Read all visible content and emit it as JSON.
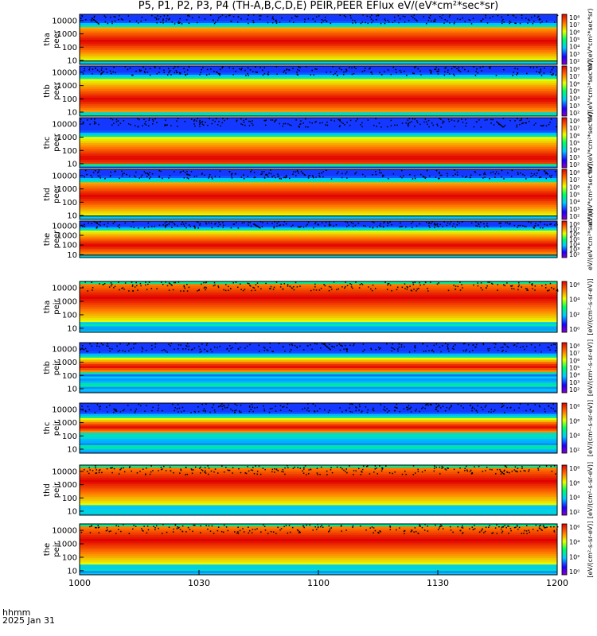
{
  "title": "P5, P1, P2, P3, P4 (TH-A,B,C,D,E) PEIR,PEER EFlux eV/(eV*cm²*sec*sr)",
  "x_axis": {
    "label_line1": "hhmm",
    "label_line2": "2025 Jan 31",
    "ticks": [
      "1000",
      "1030",
      "1100",
      "1130",
      "1200"
    ]
  },
  "colorbar_label_peer": "eV/(eV*cm²*sec*sr)",
  "colorbar_label_peir": "[eV/(cm²-s-sr-eV)]",
  "colors": {
    "background": "#ffffff",
    "axis": "#000000"
  },
  "chart_data": {
    "type": "heatmap",
    "x_range": [
      "10:00",
      "12:00"
    ],
    "x_units": "hhmm",
    "y_scale": "log",
    "y_units": "eV",
    "y_range": [
      5,
      30000
    ],
    "y_ticks": [
      "10000",
      "1000",
      "100",
      "10"
    ],
    "panels": [
      {
        "probe": "tha",
        "species": "peer",
        "ylabel": [
          "tha",
          "peer"
        ],
        "colorbar_ticks": [
          "10⁸",
          "10⁷",
          "10⁶",
          "10⁵",
          "10⁴",
          "10³",
          "10²"
        ],
        "peak_energy_eV": 300,
        "spectrum_low_eV": 10,
        "spectrum_high_eV": 3000,
        "has_potential_line": true
      },
      {
        "probe": "thb",
        "species": "peer",
        "ylabel": [
          "thb",
          "peer"
        ],
        "colorbar_ticks": [
          "10⁸",
          "10⁷",
          "10⁶",
          "10⁵",
          "10⁴",
          "10³",
          "10²"
        ],
        "peak_energy_eV": 100,
        "spectrum_low_eV": 10,
        "spectrum_high_eV": 3000,
        "has_potential_line": false
      },
      {
        "probe": "thc",
        "species": "peer",
        "ylabel": [
          "thc",
          "peer"
        ],
        "colorbar_ticks": [
          "10⁸",
          "10⁷",
          "10⁶",
          "10⁵",
          "10⁴",
          "10³",
          "10²"
        ],
        "peak_energy_eV": 30,
        "spectrum_low_eV": 10,
        "spectrum_high_eV": 1000,
        "has_potential_line": false
      },
      {
        "probe": "thd",
        "species": "peer",
        "ylabel": [
          "thd",
          "peer"
        ],
        "colorbar_ticks": [
          "10⁸",
          "10⁷",
          "10⁶",
          "10⁵",
          "10⁴",
          "10³",
          "10²"
        ],
        "peak_energy_eV": 300,
        "spectrum_low_eV": 10,
        "spectrum_high_eV": 3000,
        "has_potential_line": true
      },
      {
        "probe": "the",
        "species": "peer",
        "ylabel": [
          "the",
          "peer"
        ],
        "colorbar_ticks": [
          "10⁸",
          "10⁷",
          "10⁶",
          "10⁵",
          "10⁴",
          "10³",
          "10²"
        ],
        "peak_energy_eV": 100,
        "spectrum_low_eV": 10,
        "spectrum_high_eV": 3000,
        "has_potential_line": true
      },
      {
        "probe": "tha",
        "species": "peir",
        "ylabel": [
          "tha",
          "peir"
        ],
        "colorbar_ticks": [
          "10⁶",
          "10⁴",
          "10²",
          "10⁰"
        ],
        "peak_energy_eV": 2000,
        "spectrum_low_eV": 30,
        "spectrum_high_eV": 20000,
        "has_potential_line": false
      },
      {
        "probe": "thb",
        "species": "peir",
        "ylabel": [
          "thb",
          "peir"
        ],
        "colorbar_ticks": [
          "10⁸",
          "10⁷",
          "10⁶",
          "10⁵",
          "10⁴",
          "10³",
          "10²"
        ],
        "peak_energy_eV": 500,
        "spectrum_low_eV": 200,
        "spectrum_high_eV": 2000,
        "has_potential_line": false
      },
      {
        "probe": "thc",
        "species": "peir",
        "ylabel": [
          "thc",
          "peir"
        ],
        "colorbar_ticks": [
          "10⁸",
          "10⁶",
          "10⁴",
          "10²"
        ],
        "peak_energy_eV": 500,
        "spectrum_low_eV": 200,
        "spectrum_high_eV": 2000,
        "has_potential_line": false
      },
      {
        "probe": "thd",
        "species": "peir",
        "ylabel": [
          "thd",
          "peir"
        ],
        "colorbar_ticks": [
          "10⁸",
          "10⁶",
          "10⁴",
          "10²"
        ],
        "peak_energy_eV": 2000,
        "spectrum_low_eV": 30,
        "spectrum_high_eV": 20000,
        "has_potential_line": false
      },
      {
        "probe": "the",
        "species": "peir",
        "ylabel": [
          "the",
          "peir"
        ],
        "colorbar_ticks": [
          "10⁶",
          "10⁴",
          "10²",
          "10⁰"
        ],
        "peak_energy_eV": 2000,
        "spectrum_low_eV": 30,
        "spectrum_high_eV": 20000,
        "has_potential_line": false
      }
    ]
  }
}
